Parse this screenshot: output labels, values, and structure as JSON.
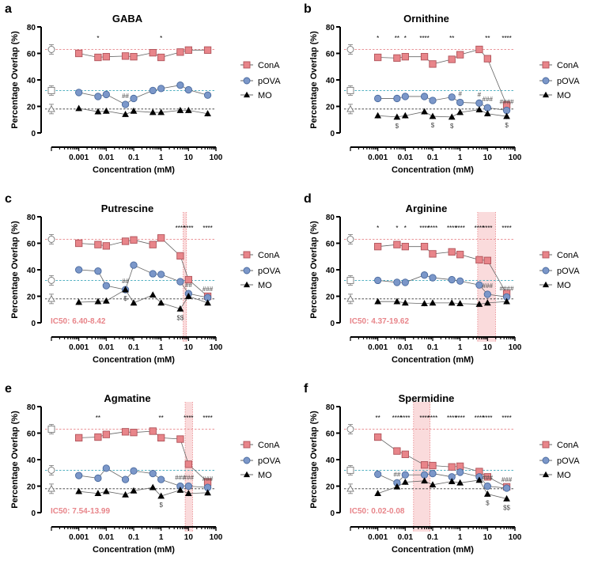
{
  "figure": {
    "legend": [
      "ConA",
      "pOVA",
      "MO"
    ],
    "colors": {
      "ConA": "#e8858a",
      "pOVA": "#7b97c9",
      "MO": "#000000",
      "ConA_ref": "#e8858a",
      "pOVA_ref": "#3aa6b9",
      "MO_ref": "#333333",
      "ic50_band": "#f9d5d6"
    }
  },
  "chart_data": [
    {
      "panel": "a",
      "title": "GABA",
      "type": "line",
      "xlabel": "Concentration (mM)",
      "ylabel": "Percentage Overlap (%)",
      "xscale": "log",
      "xlim": [
        0.0001,
        100
      ],
      "ylim": [
        0,
        80
      ],
      "xticks": [
        "0.001",
        "0.01",
        "0.1",
        "1",
        "10",
        "100"
      ],
      "yticks": [
        "0",
        "20",
        "40",
        "60",
        "80"
      ],
      "legend_position": "right",
      "x": [
        0.001,
        0.005,
        0.01,
        0.05,
        0.1,
        0.5,
        1,
        5,
        10,
        50
      ],
      "controls": {
        "ConA": {
          "value": 63,
          "marker": "circle"
        },
        "pOVA": {
          "value": 32,
          "marker": "square"
        },
        "MO": {
          "value": 18,
          "marker": "triangle"
        }
      },
      "series": [
        {
          "name": "ConA",
          "values": [
            60,
            57,
            57.5,
            58,
            57.5,
            60.5,
            57,
            61,
            62.5,
            62.5
          ],
          "sig": [
            "",
            "*",
            "",
            "",
            "",
            "",
            "*",
            "",
            "",
            ""
          ]
        },
        {
          "name": "pOVA",
          "values": [
            30.5,
            27.5,
            29,
            21.5,
            26,
            32,
            33.5,
            36,
            32.5,
            28.5
          ],
          "sig": [
            "",
            "",
            "",
            "##",
            "",
            "",
            "",
            "",
            "",
            ""
          ]
        },
        {
          "name": "MO",
          "values": [
            18.5,
            16,
            16.5,
            14,
            16.5,
            15.5,
            15.5,
            17,
            17,
            14.5
          ],
          "sig": [
            "",
            "",
            "",
            "",
            "",
            "",
            "",
            "",
            "",
            ""
          ]
        }
      ],
      "ic50": null
    },
    {
      "panel": "b",
      "title": "Ornithine",
      "type": "line",
      "xlabel": "Concentration (mM)",
      "ylabel": "Percentage Overlap (%)",
      "xscale": "log",
      "xlim": [
        0.0001,
        100
      ],
      "ylim": [
        0,
        80
      ],
      "xticks": [
        "0.001",
        "0.01",
        "0.1",
        "1",
        "10",
        "100"
      ],
      "yticks": [
        "0",
        "20",
        "40",
        "60",
        "80"
      ],
      "legend_position": "right",
      "x": [
        0.001,
        0.005,
        0.01,
        0.05,
        0.1,
        0.5,
        1,
        5,
        10,
        50
      ],
      "controls": {
        "ConA": {
          "value": 63,
          "marker": "circle"
        },
        "pOVA": {
          "value": 32,
          "marker": "square"
        },
        "MO": {
          "value": 18,
          "marker": "triangle"
        }
      },
      "series": [
        {
          "name": "ConA",
          "values": [
            57,
            56.5,
            57.5,
            57.5,
            52,
            55.5,
            59,
            63,
            56,
            21
          ],
          "sig": [
            "*",
            "**",
            "*",
            "****",
            "",
            "**",
            "",
            "",
            "**",
            "****"
          ]
        },
        {
          "name": "pOVA",
          "values": [
            26,
            26,
            27.5,
            27.5,
            24.5,
            27,
            23,
            22.5,
            19,
            17
          ],
          "sig": [
            "",
            "",
            "",
            "",
            "",
            "",
            "#",
            "#",
            "###",
            "####"
          ]
        },
        {
          "name": "MO",
          "values": [
            13,
            12,
            13,
            16,
            12.5,
            12,
            15.5,
            17.5,
            14.5,
            12.5
          ],
          "sig": [
            "",
            "$",
            "",
            "",
            "$",
            "$",
            "",
            "",
            "",
            "$"
          ]
        }
      ],
      "ic50": null
    },
    {
      "panel": "c",
      "title": "Putrescine",
      "type": "line",
      "xlabel": "Concentration (mM)",
      "ylabel": "Percentage Overlap (%)",
      "xscale": "log",
      "xlim": [
        0.0001,
        100
      ],
      "ylim": [
        0,
        80
      ],
      "xticks": [
        "0.001",
        "0.01",
        "0.1",
        "1",
        "10",
        "100"
      ],
      "yticks": [
        "0",
        "20",
        "40",
        "60",
        "80"
      ],
      "legend_position": "right",
      "x": [
        0.001,
        0.005,
        0.01,
        0.05,
        0.1,
        0.5,
        1,
        5,
        10,
        50
      ],
      "controls": {
        "ConA": {
          "value": 63,
          "marker": "circle"
        },
        "pOVA": {
          "value": 32,
          "marker": "circle"
        },
        "MO": {
          "value": 18,
          "marker": "triangle"
        }
      },
      "series": [
        {
          "name": "ConA",
          "values": [
            60,
            59,
            58,
            61.5,
            62.5,
            59,
            64,
            50.5,
            32.5,
            20
          ],
          "sig": [
            "",
            "",
            "",
            "",
            "",
            "",
            "",
            "****",
            "****",
            "****"
          ]
        },
        {
          "name": "pOVA",
          "values": [
            40,
            39,
            28,
            25,
            43.5,
            37,
            36.5,
            31,
            22,
            19
          ],
          "sig": [
            "",
            "",
            "",
            "##",
            "",
            "",
            "",
            "",
            "##",
            "###"
          ]
        },
        {
          "name": "MO",
          "values": [
            15.5,
            16,
            16.5,
            25,
            15,
            21,
            15,
            10.5,
            20,
            15
          ],
          "sig": [
            "",
            "",
            "",
            "$",
            "",
            "",
            "",
            "$$",
            "",
            ""
          ]
        }
      ],
      "ic50": {
        "label": "IC50: 6.40-8.42",
        "range": [
          6.4,
          8.42
        ]
      }
    },
    {
      "panel": "d",
      "title": "Arginine",
      "type": "line",
      "xlabel": "Concentration (mM)",
      "ylabel": "Percentage Overlap (%)",
      "xscale": "log",
      "xlim": [
        0.0001,
        100
      ],
      "ylim": [
        0,
        80
      ],
      "xticks": [
        "0.001",
        "0.01",
        "0.1",
        "1",
        "10",
        "100"
      ],
      "yticks": [
        "0",
        "20",
        "40",
        "60",
        "80"
      ],
      "legend_position": "right",
      "x": [
        0.001,
        0.005,
        0.01,
        0.05,
        0.1,
        0.5,
        1,
        5,
        10,
        50
      ],
      "controls": {
        "ConA": {
          "value": 63,
          "marker": "circle"
        },
        "pOVA": {
          "value": 32,
          "marker": "square"
        },
        "MO": {
          "value": 18,
          "marker": "triangle"
        }
      },
      "series": [
        {
          "name": "ConA",
          "values": [
            57.5,
            59,
            57.5,
            57.5,
            52,
            53.5,
            51.5,
            47.5,
            47,
            22
          ],
          "sig": [
            "*",
            "*",
            "*",
            "****",
            "****",
            "****",
            "****",
            "****",
            "****",
            "****"
          ]
        },
        {
          "name": "pOVA",
          "values": [
            32,
            30.5,
            30.5,
            36,
            34,
            32.5,
            31.5,
            28.5,
            21.5,
            19.5
          ],
          "sig": [
            "",
            "",
            "",
            "",
            "",
            "",
            "",
            "",
            "###",
            "####"
          ]
        },
        {
          "name": "MO",
          "values": [
            16,
            16,
            15,
            14.5,
            15,
            15,
            14.5,
            14,
            15,
            16
          ],
          "sig": [
            "",
            "",
            "",
            "",
            "",
            "",
            "",
            "",
            "",
            ""
          ]
        }
      ],
      "ic50": {
        "label": "IC50: 4.37-19.62",
        "range": [
          4.37,
          19.62
        ]
      }
    },
    {
      "panel": "e",
      "title": "Agmatine",
      "type": "line",
      "xlabel": "Concentration (mM)",
      "ylabel": "Percentage Overlap (%)",
      "xscale": "log",
      "xlim": [
        0.0001,
        100
      ],
      "ylim": [
        0,
        80
      ],
      "xticks": [
        "0.001",
        "0.01",
        "0.1",
        "1",
        "10",
        "100"
      ],
      "yticks": [
        "0",
        "20",
        "40",
        "60",
        "80"
      ],
      "legend_position": "right",
      "x": [
        0.001,
        0.005,
        0.01,
        0.05,
        0.1,
        0.5,
        1,
        5,
        10,
        50
      ],
      "controls": {
        "ConA": {
          "value": 63,
          "marker": "square"
        },
        "pOVA": {
          "value": 32,
          "marker": "circle"
        },
        "MO": {
          "value": 18,
          "marker": "triangle"
        }
      },
      "series": [
        {
          "name": "ConA",
          "values": [
            56.5,
            57,
            59,
            61,
            60.5,
            61.5,
            56.5,
            55.5,
            36.5,
            23
          ],
          "sig": [
            "",
            "**",
            "",
            "",
            "",
            "",
            "**",
            "",
            "****",
            "****"
          ]
        },
        {
          "name": "pOVA",
          "values": [
            28,
            26,
            33.5,
            25,
            31.5,
            29.5,
            25,
            20,
            20,
            19
          ],
          "sig": [
            "",
            "",
            "",
            "",
            "",
            "",
            "",
            "###",
            "###",
            "###"
          ]
        },
        {
          "name": "MO",
          "values": [
            16,
            14.5,
            16,
            13.5,
            16.5,
            19,
            12.5,
            17,
            14.5,
            15
          ],
          "sig": [
            "",
            "",
            "",
            "",
            "",
            "",
            "$",
            "",
            "",
            ""
          ]
        }
      ],
      "ic50": {
        "label": "IC50: 7.54-13.99",
        "range": [
          7.54,
          13.99
        ]
      }
    },
    {
      "panel": "f",
      "title": "Spermidine",
      "type": "line",
      "xlabel": "Concentration (mM)",
      "ylabel": "Percentage Overlap (%)",
      "xscale": "log",
      "xlim": [
        0.0001,
        100
      ],
      "ylim": [
        0,
        80
      ],
      "xticks": [
        "0.001",
        "0.01",
        "0.1",
        "1",
        "10",
        "100"
      ],
      "yticks": [
        "0",
        "20",
        "40",
        "60",
        "80"
      ],
      "legend_position": "right",
      "x": [
        0.001,
        0.005,
        0.01,
        0.05,
        0.1,
        0.5,
        1,
        5,
        10,
        50
      ],
      "controls": {
        "ConA": {
          "value": 63,
          "marker": "circle"
        },
        "pOVA": {
          "value": 32,
          "marker": "square"
        },
        "MO": {
          "value": 18,
          "marker": "triangle"
        }
      },
      "series": [
        {
          "name": "ConA",
          "values": [
            57,
            46.5,
            44,
            36,
            35.5,
            34.5,
            35,
            31,
            27,
            19.5
          ],
          "sig": [
            "**",
            "****",
            "****",
            "****",
            "****",
            "****",
            "****",
            "****",
            "****",
            "****"
          ]
        },
        {
          "name": "pOVA",
          "values": [
            29,
            22.5,
            28.5,
            28.5,
            29.5,
            27,
            30.5,
            27,
            20,
            18.5
          ],
          "sig": [
            "",
            "##",
            "",
            "",
            "",
            "",
            "",
            "",
            "###",
            "###"
          ]
        },
        {
          "name": "MO",
          "values": [
            14.5,
            19.5,
            23,
            24,
            21,
            23.5,
            22.5,
            24.5,
            14,
            10.5
          ],
          "sig": [
            "",
            "",
            "",
            "",
            "",
            "",
            "",
            "",
            "$",
            "$$"
          ]
        }
      ],
      "ic50": {
        "label": "IC50: 0.02-0.08",
        "range": [
          0.02,
          0.08
        ]
      }
    }
  ]
}
